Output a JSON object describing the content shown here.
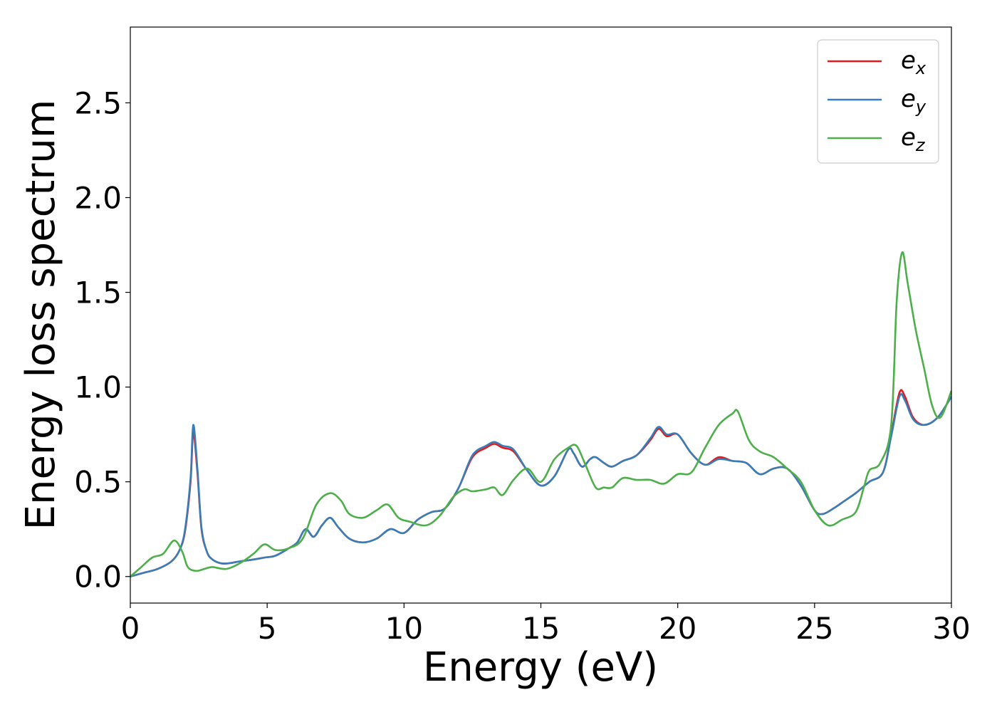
{
  "chart_data": {
    "type": "line",
    "title": "",
    "xlabel": "Energy (eV)",
    "ylabel": "Energy loss spectrum",
    "xlim": [
      0,
      30
    ],
    "ylim": [
      -0.14,
      2.9
    ],
    "xticks": [
      0,
      5,
      10,
      15,
      20,
      25,
      30
    ],
    "xtick_labels": [
      "0",
      "5",
      "10",
      "15",
      "20",
      "25",
      "30"
    ],
    "yticks": [
      0.0,
      0.5,
      1.0,
      1.5,
      2.0,
      2.5
    ],
    "ytick_labels": [
      "0.0",
      "0.5",
      "1.0",
      "1.5",
      "2.0",
      "2.5"
    ],
    "grid": false,
    "legend_position": "top-right",
    "series": [
      {
        "name": "e_x",
        "legend_base": "e",
        "legend_sub": "x",
        "color": "#e41a1c",
        "x": [
          0,
          0.5,
          1.0,
          1.5,
          1.8,
          2.0,
          2.2,
          2.3,
          2.45,
          2.6,
          2.8,
          3.0,
          3.3,
          3.6,
          4.0,
          4.5,
          4.9,
          5.3,
          5.8,
          6.1,
          6.4,
          6.7,
          7.0,
          7.3,
          7.6,
          8.0,
          8.5,
          9.0,
          9.5,
          10.0,
          10.5,
          11.0,
          11.5,
          12.0,
          12.5,
          13.0,
          13.3,
          13.6,
          14.0,
          14.5,
          15.0,
          15.5,
          16.0,
          16.2,
          16.5,
          16.8,
          17.0,
          17.3,
          17.6,
          18.0,
          18.5,
          19.0,
          19.3,
          19.6,
          20.0,
          20.5,
          21.0,
          21.5,
          22.0,
          22.5,
          23.0,
          23.5,
          24.0,
          24.5,
          25.0,
          25.3,
          25.7,
          26.0,
          26.5,
          27.0,
          27.5,
          27.8,
          28.1,
          28.3,
          28.6,
          29.0,
          29.5,
          30.0
        ],
        "y": [
          0.0,
          0.02,
          0.04,
          0.08,
          0.14,
          0.24,
          0.5,
          0.76,
          0.55,
          0.25,
          0.13,
          0.09,
          0.07,
          0.07,
          0.08,
          0.09,
          0.1,
          0.11,
          0.15,
          0.18,
          0.25,
          0.21,
          0.27,
          0.31,
          0.26,
          0.2,
          0.18,
          0.2,
          0.25,
          0.23,
          0.3,
          0.34,
          0.36,
          0.47,
          0.63,
          0.68,
          0.7,
          0.68,
          0.66,
          0.56,
          0.48,
          0.53,
          0.67,
          0.65,
          0.58,
          0.62,
          0.63,
          0.6,
          0.58,
          0.61,
          0.64,
          0.72,
          0.78,
          0.74,
          0.75,
          0.65,
          0.59,
          0.63,
          0.61,
          0.6,
          0.54,
          0.57,
          0.57,
          0.48,
          0.35,
          0.33,
          0.36,
          0.39,
          0.44,
          0.5,
          0.55,
          0.75,
          0.97,
          0.95,
          0.84,
          0.8,
          0.84,
          0.95
        ]
      },
      {
        "name": "e_y",
        "legend_base": "e",
        "legend_sub": "y",
        "color": "#377eb8",
        "x": [
          0,
          0.5,
          1.0,
          1.5,
          1.8,
          2.0,
          2.2,
          2.3,
          2.45,
          2.6,
          2.8,
          3.0,
          3.3,
          3.6,
          4.0,
          4.5,
          4.9,
          5.3,
          5.8,
          6.1,
          6.4,
          6.7,
          7.0,
          7.3,
          7.6,
          8.0,
          8.5,
          9.0,
          9.5,
          10.0,
          10.5,
          11.0,
          11.5,
          12.0,
          12.5,
          13.0,
          13.3,
          13.6,
          14.0,
          14.5,
          15.0,
          15.5,
          16.0,
          16.2,
          16.5,
          16.8,
          17.0,
          17.3,
          17.6,
          18.0,
          18.5,
          19.0,
          19.3,
          19.6,
          20.0,
          20.5,
          21.0,
          21.5,
          22.0,
          22.5,
          23.0,
          23.5,
          24.0,
          24.5,
          25.0,
          25.3,
          25.7,
          26.0,
          26.5,
          27.0,
          27.5,
          27.8,
          28.1,
          28.3,
          28.6,
          29.0,
          29.5,
          30.0
        ],
        "y": [
          0.0,
          0.02,
          0.04,
          0.08,
          0.14,
          0.25,
          0.52,
          0.8,
          0.57,
          0.26,
          0.13,
          0.09,
          0.07,
          0.07,
          0.08,
          0.09,
          0.1,
          0.11,
          0.15,
          0.18,
          0.25,
          0.21,
          0.27,
          0.31,
          0.26,
          0.2,
          0.18,
          0.2,
          0.25,
          0.23,
          0.3,
          0.34,
          0.36,
          0.47,
          0.64,
          0.69,
          0.71,
          0.69,
          0.67,
          0.56,
          0.48,
          0.53,
          0.67,
          0.65,
          0.58,
          0.62,
          0.63,
          0.6,
          0.58,
          0.61,
          0.64,
          0.73,
          0.79,
          0.75,
          0.75,
          0.65,
          0.59,
          0.62,
          0.61,
          0.6,
          0.54,
          0.57,
          0.57,
          0.48,
          0.35,
          0.33,
          0.36,
          0.39,
          0.44,
          0.5,
          0.55,
          0.74,
          0.95,
          0.93,
          0.83,
          0.8,
          0.84,
          0.95
        ]
      },
      {
        "name": "e_z",
        "legend_base": "e",
        "legend_sub": "z",
        "color": "#4daf4a",
        "x": [
          0,
          0.4,
          0.8,
          1.2,
          1.6,
          1.9,
          2.1,
          2.4,
          2.7,
          3.0,
          3.5,
          4.0,
          4.5,
          4.9,
          5.3,
          5.8,
          6.3,
          6.8,
          7.3,
          7.7,
          8.0,
          8.5,
          9.0,
          9.4,
          9.8,
          10.2,
          10.8,
          11.3,
          11.8,
          12.2,
          12.5,
          13.0,
          13.3,
          13.6,
          14.0,
          14.5,
          15.0,
          15.5,
          16.0,
          16.3,
          16.6,
          17.0,
          17.3,
          17.6,
          18.0,
          18.5,
          19.0,
          19.5,
          20.0,
          20.5,
          21.0,
          21.5,
          22.0,
          22.2,
          22.6,
          23.0,
          23.5,
          24.0,
          24.5,
          25.0,
          25.5,
          26.0,
          26.5,
          26.8,
          27.0,
          27.4,
          27.8,
          28.0,
          28.2,
          28.4,
          28.7,
          29.0,
          29.3,
          29.6,
          30.0
        ],
        "y": [
          0.0,
          0.05,
          0.1,
          0.12,
          0.19,
          0.13,
          0.05,
          0.03,
          0.04,
          0.05,
          0.04,
          0.07,
          0.12,
          0.17,
          0.14,
          0.15,
          0.2,
          0.38,
          0.44,
          0.4,
          0.33,
          0.31,
          0.35,
          0.38,
          0.31,
          0.29,
          0.27,
          0.32,
          0.42,
          0.46,
          0.45,
          0.46,
          0.47,
          0.43,
          0.51,
          0.57,
          0.5,
          0.62,
          0.68,
          0.69,
          0.6,
          0.47,
          0.47,
          0.47,
          0.52,
          0.51,
          0.51,
          0.49,
          0.54,
          0.55,
          0.68,
          0.8,
          0.86,
          0.87,
          0.72,
          0.66,
          0.63,
          0.57,
          0.5,
          0.35,
          0.27,
          0.3,
          0.34,
          0.47,
          0.56,
          0.6,
          0.8,
          1.45,
          1.71,
          1.55,
          1.3,
          1.1,
          0.9,
          0.84,
          0.98
        ]
      }
    ]
  }
}
